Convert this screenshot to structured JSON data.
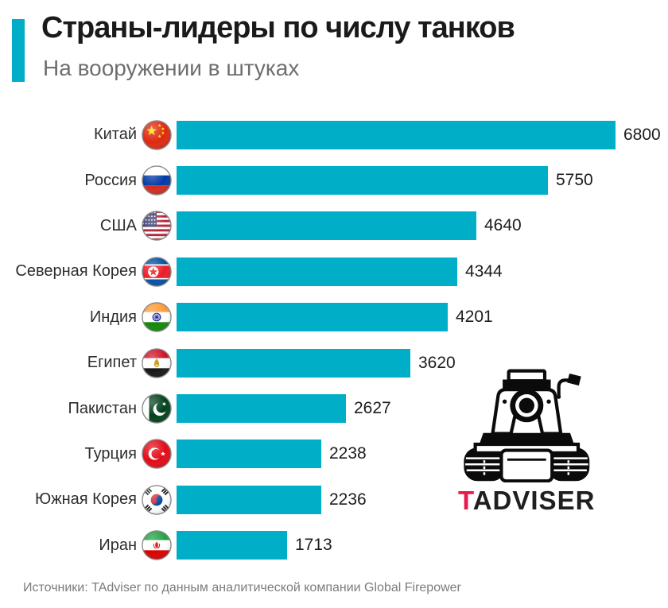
{
  "header": {
    "title": "Страны-лидеры по числу танков",
    "subtitle": "На вооружении в штуках"
  },
  "chart_data": {
    "type": "bar",
    "orientation": "horizontal",
    "title": "Страны-лидеры по числу танков",
    "subtitle": "На вооружении в штуках",
    "categories": [
      "Китай",
      "Россия",
      "США",
      "Северная Корея",
      "Индия",
      "Египет",
      "Пакистан",
      "Турция",
      "Южная Корея",
      "Иран"
    ],
    "values": [
      6800,
      5750,
      4640,
      4344,
      4201,
      3620,
      2627,
      2238,
      2236,
      1713
    ],
    "flags": [
      "cn",
      "ru",
      "us",
      "kp",
      "in",
      "eg",
      "pk",
      "tr",
      "kr",
      "ir"
    ],
    "xlim": [
      0,
      6800
    ],
    "bar_color": "#00AEC7",
    "grid": false,
    "legend": false,
    "data_labels": true
  },
  "logo": {
    "letter": "T",
    "rest": "ADVISER"
  },
  "footer": {
    "source": "Источники: TAdviser по данным аналитической компании Global Firepower"
  },
  "colors": {
    "accent": "#00AEC7",
    "bar": "#00AEC7",
    "logo_letter": "#E8194B",
    "title": "#1A1A1A",
    "subtitle": "#6E6E6E",
    "source": "#7C7C7C"
  }
}
